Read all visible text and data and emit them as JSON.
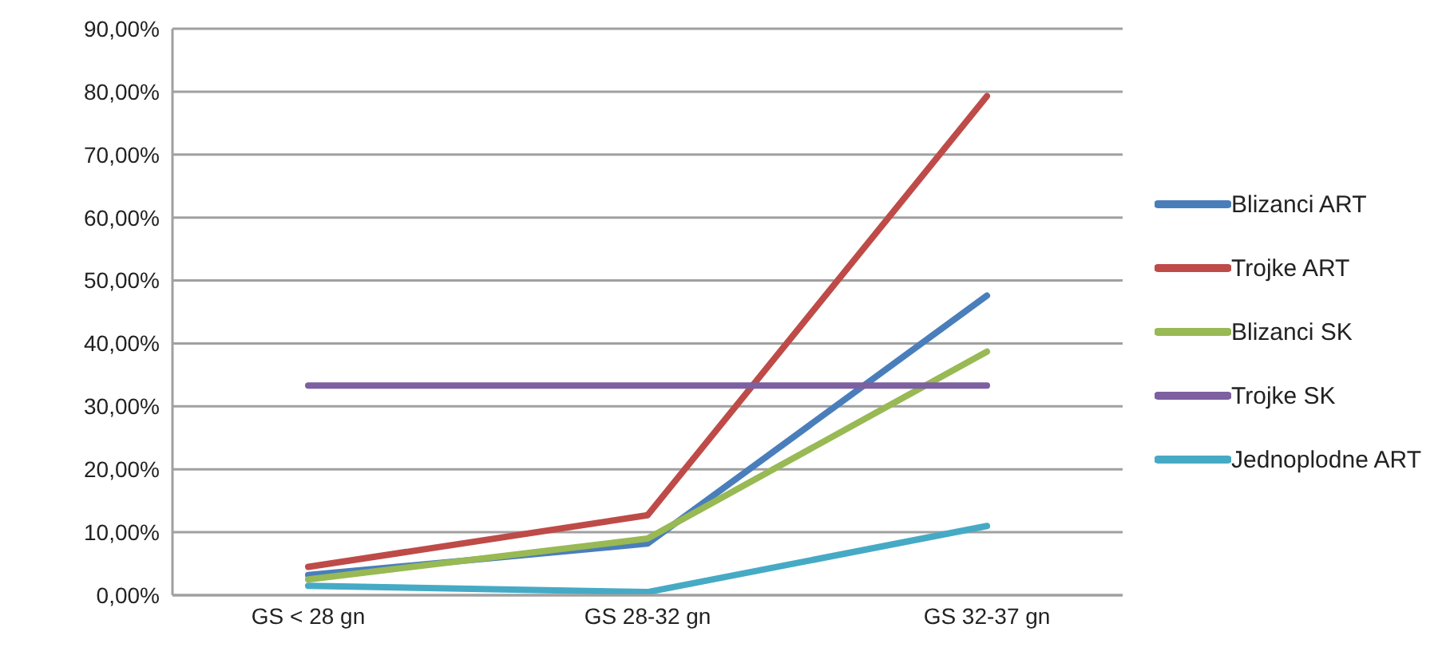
{
  "chart_data": {
    "type": "line",
    "categories": [
      "GS < 28 gn",
      "GS 28-32 gn",
      "GS 32-37 gn"
    ],
    "series": [
      {
        "name": "Blizanci ART",
        "color": "#4a7ebb",
        "values": [
          3.2,
          8.2,
          47.6
        ]
      },
      {
        "name": "Trojke ART",
        "color": "#be4b48",
        "values": [
          4.5,
          12.7,
          79.3
        ]
      },
      {
        "name": "Blizanci SK",
        "color": "#98b954",
        "values": [
          2.5,
          9,
          38.7
        ]
      },
      {
        "name": "Trojke SK",
        "color": "#7d60a0",
        "values": [
          33.3,
          33.3,
          33.3
        ]
      },
      {
        "name": "Jednoplodne ART",
        "color": "#46aac5",
        "values": [
          1.5,
          0.5,
          11
        ]
      }
    ],
    "ylim": [
      0,
      90
    ],
    "yticks": [
      {
        "value": 0,
        "label": "0,00%"
      },
      {
        "value": 10,
        "label": "10,00%"
      },
      {
        "value": 20,
        "label": "20,00%"
      },
      {
        "value": 30,
        "label": "30,00%"
      },
      {
        "value": 40,
        "label": "40,00%"
      },
      {
        "value": 50,
        "label": "50,00%"
      },
      {
        "value": 60,
        "label": "60,00%"
      },
      {
        "value": 70,
        "label": "70,00%"
      },
      {
        "value": 80,
        "label": "80,00%"
      },
      {
        "value": 90,
        "label": "90,00%"
      }
    ],
    "grid": "y",
    "legend": "right",
    "marker": "none",
    "line_style": "solid"
  }
}
